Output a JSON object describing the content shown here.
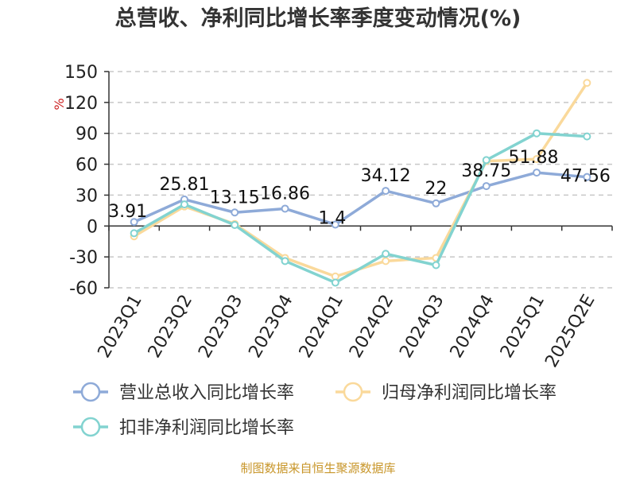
{
  "chart_data": {
    "type": "line",
    "title": "总营收、净利同比增长率季度变动情况(%)",
    "ylabel": "%",
    "ylim": [
      -60,
      150
    ],
    "yticks": [
      150,
      120,
      90,
      60,
      30,
      0,
      -30,
      -60
    ],
    "grid": true,
    "legend_position": "bottom",
    "categories": [
      "2023Q1",
      "2023Q2",
      "2023Q3",
      "2023Q4",
      "2024Q1",
      "2024Q2",
      "2024Q3",
      "2024Q4",
      "2025Q1",
      "2025Q2E"
    ],
    "series": [
      {
        "name": "营业总收入同比增长率",
        "color": "#8eaad8",
        "values": [
          3.91,
          25.81,
          13.15,
          16.86,
          1.4,
          34.12,
          22,
          38.75,
          51.88,
          47.56
        ],
        "labels": [
          "3.91",
          "25.81",
          "13.15",
          "16.86",
          "1.4",
          "34.12",
          "22",
          "38.75",
          "51.88",
          "47.56"
        ]
      },
      {
        "name": "归母净利润同比增长率",
        "color": "#fad99b",
        "values": [
          -10,
          19,
          2,
          -31,
          -49,
          -34,
          -31,
          63,
          65,
          139
        ]
      },
      {
        "name": "扣非净利润同比增长率",
        "color": "#82d3d0",
        "values": [
          -7,
          21,
          1,
          -34,
          -55,
          -27,
          -38,
          64,
          90,
          87
        ]
      }
    ],
    "source": "制图数据来自恒生聚源数据库"
  }
}
